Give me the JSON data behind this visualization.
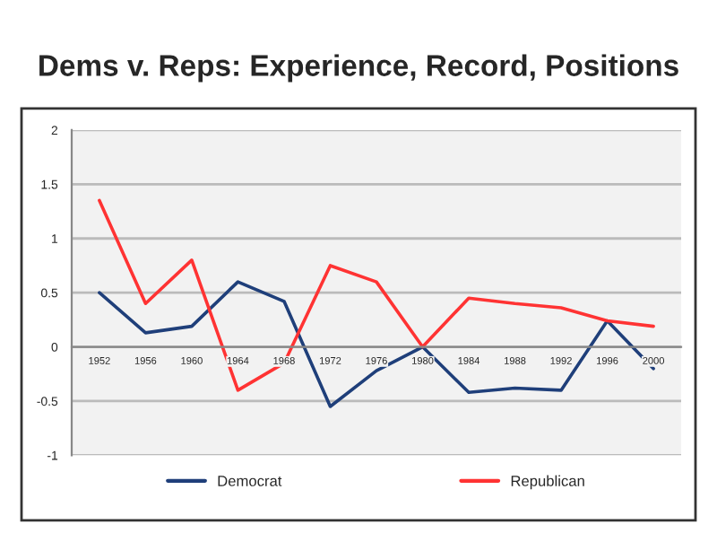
{
  "chart_data": {
    "type": "line",
    "title": "Dems v. Reps: Experience, Record, Positions",
    "categories": [
      "1952",
      "1956",
      "1960",
      "1964",
      "1968",
      "1972",
      "1976",
      "1980",
      "1984",
      "1988",
      "1992",
      "1996",
      "2000"
    ],
    "series": [
      {
        "name": "Democrat",
        "color": "#1f3f7a",
        "values": [
          0.5,
          0.13,
          0.19,
          0.6,
          0.42,
          -0.55,
          -0.22,
          0.0,
          -0.42,
          -0.38,
          -0.4,
          0.24,
          -0.2
        ]
      },
      {
        "name": "Republican",
        "color": "#ff3333",
        "values": [
          1.35,
          0.4,
          0.8,
          -0.4,
          -0.15,
          0.75,
          0.6,
          0.0,
          0.45,
          0.4,
          0.36,
          0.24,
          0.19
        ]
      }
    ],
    "ylim": [
      -1,
      2
    ],
    "yticks": [
      -1,
      -0.5,
      0,
      0.5,
      1,
      1.5,
      2
    ],
    "grid": "y",
    "legend": "bottom",
    "marker": "none",
    "line_style": "solid"
  }
}
